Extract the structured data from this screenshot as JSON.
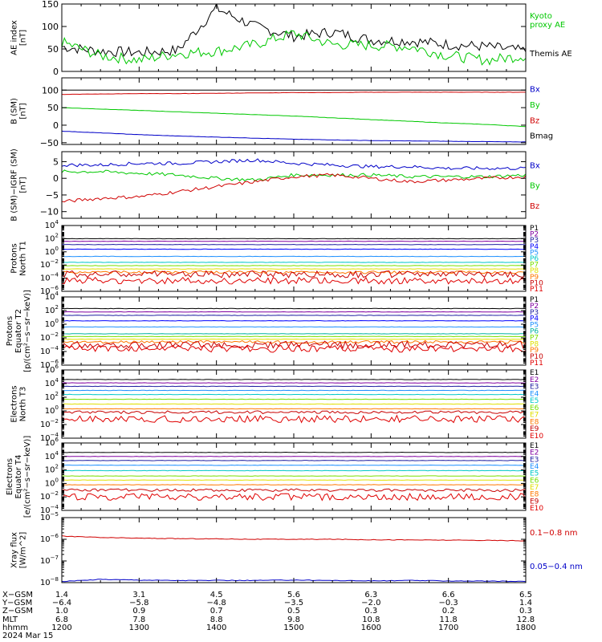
{
  "colors": {
    "black": "#000000",
    "red": "#d00000",
    "green": "#00c800",
    "blue": "#0000c8",
    "navy": "#1e1ea0",
    "purple": "#8000a0",
    "dblue": "#0000ff",
    "sky": "#1e90ff",
    "cyan": "#00c8c8",
    "teal": "#00b4a0",
    "lime": "#78e000",
    "yellow": "#e0e000",
    "amber": "#e0a000",
    "orange": "#ff7800",
    "dred": "#c80000",
    "crimson": "#e00000"
  },
  "chart_data": {
    "type": "line",
    "x_hours": [
      12,
      12.5,
      13,
      13.5,
      14,
      14.5,
      15,
      15.5,
      16,
      16.5,
      17,
      17.5,
      18
    ],
    "panels": [
      {
        "id": "ae",
        "ylabel": [
          "AE index",
          "[nT]"
        ],
        "ylim": [
          0,
          150
        ],
        "log": false,
        "ticks": [
          {
            "v": 0,
            "l": "0"
          },
          {
            "v": 50,
            "l": "50"
          },
          {
            "v": 100,
            "l": "100"
          },
          {
            "v": 150,
            "l": "150"
          }
        ],
        "legend": [
          {
            "text": "Kyoto",
            "color": "green"
          },
          {
            "text": "proxy AE",
            "color": "green"
          },
          {
            "text": "Themis AE",
            "color": "black"
          }
        ],
        "series": [
          {
            "name": "Themis AE",
            "color": "black",
            "values": [
              55,
              45,
              42,
              47,
              140,
              100,
              78,
              88,
              70,
              68,
              60,
              55,
              45
            ]
          },
          {
            "name": "Kyoto proxy AE",
            "color": "green",
            "values": [
              65,
              35,
              25,
              40,
              45,
              60,
              85,
              60,
              58,
              55,
              35,
              25,
              35
            ]
          }
        ]
      },
      {
        "id": "bsm",
        "ylabel": [
          "B (SM)",
          "[nT]"
        ],
        "ylim": [
          -55,
          135
        ],
        "log": false,
        "ticks": [
          {
            "v": -50,
            "l": "−50"
          },
          {
            "v": 0,
            "l": "0"
          },
          {
            "v": 50,
            "l": "50"
          },
          {
            "v": 100,
            "l": "100"
          }
        ],
        "legend": [
          {
            "text": "Bx",
            "color": "blue"
          },
          {
            "text": "By",
            "color": "green"
          },
          {
            "text": "Bz",
            "color": "red"
          },
          {
            "text": "Bmag",
            "color": "black"
          }
        ],
        "series": [
          {
            "name": "Bmag",
            "color": "black",
            "values": [
              100,
              100,
              100,
              100,
              100,
              100,
              100,
              100,
              100,
              100,
              100,
              100,
              100
            ]
          },
          {
            "name": "Bz",
            "color": "red",
            "values": [
              88,
              89,
              90,
              90,
              91,
              92,
              93,
              93,
              94,
              94,
              94,
              94,
              94
            ]
          },
          {
            "name": "By",
            "color": "green",
            "values": [
              50,
              46,
              42,
              38,
              34,
              30,
              26,
              21,
              16,
              11,
              6,
              2,
              -4
            ]
          },
          {
            "name": "Bx",
            "color": "blue",
            "values": [
              -17,
              -22,
              -27,
              -31,
              -34,
              -37,
              -40,
              -42,
              -44,
              -45,
              -46,
              -47,
              -48
            ]
          }
        ]
      },
      {
        "id": "bigrf",
        "ylabel": [
          "B (SM)−IGRF (SM)",
          "[nT]"
        ],
        "ylim": [
          -12,
          8
        ],
        "log": false,
        "ticks": [
          {
            "v": -10,
            "l": "−10"
          },
          {
            "v": -5,
            "l": "−5"
          },
          {
            "v": 0,
            "l": "0"
          },
          {
            "v": 5,
            "l": "5"
          }
        ],
        "legend": [
          {
            "text": "Bx",
            "color": "blue"
          },
          {
            "text": "By",
            "color": "green"
          },
          {
            "text": "Bz",
            "color": "red"
          }
        ],
        "series": [
          {
            "name": "Bx",
            "color": "blue",
            "values": [
              4,
              4,
              4.5,
              4.5,
              5,
              5.5,
              4.5,
              4,
              3.5,
              3.5,
              3,
              3,
              3
            ]
          },
          {
            "name": "By",
            "color": "green",
            "values": [
              2,
              2,
              1.5,
              1,
              0,
              -0.5,
              1,
              1,
              1,
              0.5,
              0.5,
              0.5,
              1
            ]
          },
          {
            "name": "Bz",
            "color": "red",
            "values": [
              -7,
              -6,
              -5.5,
              -4,
              -2.5,
              -1,
              0.5,
              1,
              0,
              -1,
              -0.5,
              0,
              0.5
            ]
          }
        ]
      },
      {
        "id": "pn",
        "ylabel": [
          "Protons",
          "North T1"
        ],
        "ylim_exp": [
          -6,
          4
        ],
        "log": true,
        "ticks": [
          {
            "e": 4
          },
          {
            "e": 2
          },
          {
            "e": 0
          },
          {
            "e": -2
          },
          {
            "e": -4
          },
          {
            "e": -6
          }
        ],
        "legend": [
          {
            "text": "P1",
            "color": "black"
          },
          {
            "text": "P2",
            "color": "purple"
          },
          {
            "text": "P3",
            "color": "navy"
          },
          {
            "text": "P4",
            "color": "dblue"
          },
          {
            "text": "P5",
            "color": "sky"
          },
          {
            "text": "P6",
            "color": "cyan"
          },
          {
            "text": "P7",
            "color": "lime"
          },
          {
            "text": "P8",
            "color": "yellow"
          },
          {
            "text": "P9",
            "color": "orange"
          },
          {
            "text": "P10",
            "color": "dred"
          },
          {
            "text": "P11",
            "color": "crimson"
          }
        ],
        "series": [
          {
            "name": "P1",
            "color": "black",
            "exp": 2.0
          },
          {
            "name": "P2",
            "color": "purple",
            "exp": 1.6
          },
          {
            "name": "P3",
            "color": "navy",
            "exp": 1.1
          },
          {
            "name": "P4",
            "color": "dblue",
            "exp": 0.4
          },
          {
            "name": "P5",
            "color": "sky",
            "exp": -0.7
          },
          {
            "name": "P6",
            "color": "cyan",
            "exp": -1.6
          },
          {
            "name": "P7",
            "color": "lime",
            "exp": -2.1
          },
          {
            "name": "P8",
            "color": "yellow",
            "exp": -2.6
          },
          {
            "name": "P9",
            "color": "orange",
            "exp": -3.1
          },
          {
            "name": "P10",
            "color": "dred",
            "exp": -3.4
          },
          {
            "name": "P11",
            "color": "crimson",
            "exp": -4.4
          }
        ]
      },
      {
        "id": "pe",
        "ylabel": [
          "Protons",
          "Equator T2",
          "[p/(cm²−s−sr−keV)]"
        ],
        "ylim_exp": [
          -6,
          4
        ],
        "log": true,
        "ticks": [
          {
            "e": 4
          },
          {
            "e": 2
          },
          {
            "e": 0
          },
          {
            "e": -2
          },
          {
            "e": -4
          },
          {
            "e": -6
          }
        ],
        "legend": [
          {
            "text": "P1",
            "color": "black"
          },
          {
            "text": "P2",
            "color": "purple"
          },
          {
            "text": "P3",
            "color": "navy"
          },
          {
            "text": "P4",
            "color": "dblue"
          },
          {
            "text": "P5",
            "color": "sky"
          },
          {
            "text": "P6",
            "color": "teal"
          },
          {
            "text": "P7",
            "color": "lime"
          },
          {
            "text": "P8",
            "color": "yellow"
          },
          {
            "text": "P9",
            "color": "orange"
          },
          {
            "text": "P10",
            "color": "dred"
          },
          {
            "text": "P11",
            "color": "crimson"
          }
        ],
        "series": [
          {
            "name": "P1",
            "color": "black",
            "exp": 2.3
          },
          {
            "name": "P2",
            "color": "purple",
            "exp": 1.8
          },
          {
            "name": "P3",
            "color": "navy",
            "exp": 1.3
          },
          {
            "name": "P4",
            "color": "dblue",
            "exp": 0.5
          },
          {
            "name": "P5",
            "color": "sky",
            "exp": -0.4
          },
          {
            "name": "P6",
            "color": "teal",
            "exp": -1.4
          },
          {
            "name": "P7",
            "color": "lime",
            "exp": -1.8
          },
          {
            "name": "P8",
            "color": "yellow",
            "exp": -2.2
          },
          {
            "name": "P9",
            "color": "orange",
            "exp": -2.6
          },
          {
            "name": "P10",
            "color": "dred",
            "exp": -3.0
          },
          {
            "name": "P11",
            "color": "crimson",
            "exp": -3.6
          }
        ]
      },
      {
        "id": "en",
        "ylabel": [
          "Electrons",
          "North T3"
        ],
        "ylim_exp": [
          -4,
          6
        ],
        "log": true,
        "ticks": [
          {
            "e": 6
          },
          {
            "e": 4
          },
          {
            "e": 2
          },
          {
            "e": 0
          },
          {
            "e": -2
          },
          {
            "e": -4
          }
        ],
        "legend": [
          {
            "text": "E1",
            "color": "black"
          },
          {
            "text": "E2",
            "color": "purple"
          },
          {
            "text": "E3",
            "color": "navy"
          },
          {
            "text": "E4",
            "color": "sky"
          },
          {
            "text": "E5",
            "color": "cyan"
          },
          {
            "text": "E6",
            "color": "lime"
          },
          {
            "text": "E7",
            "color": "yellow"
          },
          {
            "text": "E8",
            "color": "orange"
          },
          {
            "text": "E9",
            "color": "dred"
          },
          {
            "text": "E10",
            "color": "crimson"
          }
        ],
        "series": [
          {
            "name": "E1",
            "color": "black",
            "exp": 4.6
          },
          {
            "name": "E2",
            "color": "purple",
            "exp": 4.1
          },
          {
            "name": "E3",
            "color": "navy",
            "exp": 3.6
          },
          {
            "name": "E4",
            "color": "sky",
            "exp": 3.0
          },
          {
            "name": "E5",
            "color": "cyan",
            "exp": 2.4
          },
          {
            "name": "E6",
            "color": "lime",
            "exp": 1.7
          },
          {
            "name": "E7",
            "color": "yellow",
            "exp": 1.0
          },
          {
            "name": "E8",
            "color": "orange",
            "exp": 0.3
          },
          {
            "name": "E9",
            "color": "dred",
            "exp": -0.2
          },
          {
            "name": "E10",
            "color": "crimson",
            "exp": -1.2
          }
        ]
      },
      {
        "id": "ee",
        "ylabel": [
          "Electrons",
          "Equator T4",
          "[e/(cm²−s−sr−keV)]"
        ],
        "ylim_exp": [
          -4,
          6
        ],
        "log": true,
        "ticks": [
          {
            "e": 6
          },
          {
            "e": 4
          },
          {
            "e": 2
          },
          {
            "e": 0
          },
          {
            "e": -2
          },
          {
            "e": -4
          }
        ],
        "legend": [
          {
            "text": "E1",
            "color": "black"
          },
          {
            "text": "E2",
            "color": "purple"
          },
          {
            "text": "E3",
            "color": "navy"
          },
          {
            "text": "E4",
            "color": "sky"
          },
          {
            "text": "E5",
            "color": "cyan"
          },
          {
            "text": "E6",
            "color": "lime"
          },
          {
            "text": "E7",
            "color": "yellow"
          },
          {
            "text": "E8",
            "color": "orange"
          },
          {
            "text": "E9",
            "color": "dred"
          },
          {
            "text": "E10",
            "color": "crimson"
          }
        ],
        "series": [
          {
            "name": "E1",
            "color": "black",
            "exp": 4.6
          },
          {
            "name": "E2",
            "color": "purple",
            "exp": 4.0
          },
          {
            "name": "E3",
            "color": "navy",
            "exp": 3.4
          },
          {
            "name": "E4",
            "color": "sky",
            "exp": 2.7
          },
          {
            "name": "E5",
            "color": "cyan",
            "exp": 1.9
          },
          {
            "name": "E6",
            "color": "lime",
            "exp": 1.1
          },
          {
            "name": "E7",
            "color": "yellow",
            "exp": 0.5
          },
          {
            "name": "E8",
            "color": "orange",
            "exp": -0.2
          },
          {
            "name": "E9",
            "color": "dred",
            "exp": -1.0
          },
          {
            "name": "E10",
            "color": "crimson",
            "exp": -2.0
          }
        ]
      },
      {
        "id": "xray",
        "ylabel": [
          "Xray flux",
          "[W/m^2]"
        ],
        "ylim_exp": [
          -8,
          -5
        ],
        "log": true,
        "ticks": [
          {
            "e": -5
          },
          {
            "e": -6
          },
          {
            "e": -7
          },
          {
            "e": -8
          }
        ],
        "legend": [
          {
            "text": "0.1−0.8 nm",
            "color": "red"
          },
          {
            "text": "0.05−0.4 nm",
            "color": "blue"
          }
        ],
        "series": [
          {
            "name": "0.1−0.8 nm",
            "color": "red",
            "exp_values": [
              -5.85,
              -5.92,
              -5.95,
              -5.97,
              -5.98,
              -6.0,
              -6.0,
              -6.0,
              -6.02,
              -6.03,
              -6.04,
              -6.05,
              -6.07
            ]
          },
          {
            "name": "0.05−0.4 nm",
            "color": "blue",
            "exp_values": [
              -7.95,
              -7.85,
              -7.88,
              -7.9,
              -7.9,
              -7.9,
              -7.88,
              -7.9,
              -7.92,
              -7.9,
              -7.92,
              -7.93,
              -7.95
            ]
          }
        ]
      }
    ]
  },
  "footer": {
    "row_labels": [
      "X−GSM",
      "Y−GSM",
      "Z−GSM",
      "MLT",
      "hhmm",
      "2024 Mar 15"
    ],
    "columns": [
      {
        "x": "1.4",
        "y": "−6.4",
        "z": "1.0",
        "mlt": "6.8",
        "hhmm": "1200"
      },
      {
        "x": "3.1",
        "y": "−5.8",
        "z": "0.9",
        "mlt": "7.8",
        "hhmm": "1300"
      },
      {
        "x": "4.5",
        "y": "−4.8",
        "z": "0.7",
        "mlt": "8.8",
        "hhmm": "1400"
      },
      {
        "x": "5.6",
        "y": "−3.5",
        "z": "0.5",
        "mlt": "9.8",
        "hhmm": "1500"
      },
      {
        "x": "6.3",
        "y": "−2.0",
        "z": "0.3",
        "mlt": "10.8",
        "hhmm": "1600"
      },
      {
        "x": "6.6",
        "y": "−0.3",
        "z": "0.2",
        "mlt": "11.8",
        "hhmm": "1700"
      },
      {
        "x": "6.5",
        "y": "1.4",
        "z": "0.3",
        "mlt": "12.8",
        "hhmm": "1800"
      }
    ]
  }
}
